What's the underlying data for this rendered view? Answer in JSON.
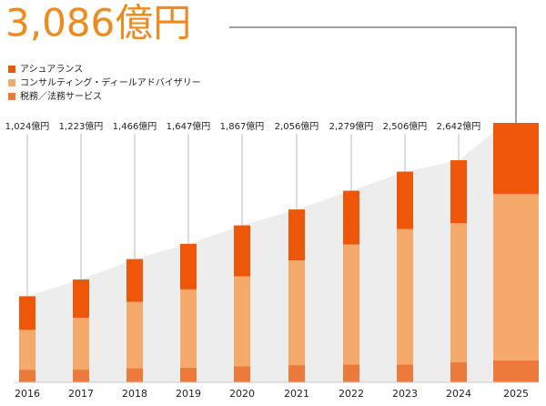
{
  "chart_data": {
    "type": "stacked-bar",
    "categories": [
      "2016",
      "2017",
      "2018",
      "2019",
      "2020",
      "2021",
      "2022",
      "2023",
      "2024",
      "2025"
    ],
    "series": [
      {
        "name": "税務／法務サービス",
        "color": "#ec7a3a",
        "values": [
          150,
          151,
          167,
          175,
          190,
          205,
          211,
          211,
          238,
          261
        ]
      },
      {
        "name": "コンサルティング・ディールアドバイザリー",
        "color": "#f5aa6c",
        "values": [
          474,
          617,
          790,
          931,
          1071,
          1245,
          1429,
          1613,
          1657,
          1981
        ]
      },
      {
        "name": "アシュアランス",
        "color": "#ee560a",
        "values": [
          400,
          455,
          509,
          541,
          606,
          606,
          639,
          682,
          747,
          844
        ]
      }
    ],
    "totals": [
      1024,
      1223,
      1466,
      1647,
      1867,
      2056,
      2279,
      2506,
      2642,
      3086
    ],
    "total_labels": [
      "1,024億円",
      "1,223億円",
      "1,466億円",
      "1,647億円",
      "1,867億円",
      "2,056億円",
      "2,279億円",
      "2,506億円",
      "2,642億円",
      "3,086億円"
    ]
  }
}
